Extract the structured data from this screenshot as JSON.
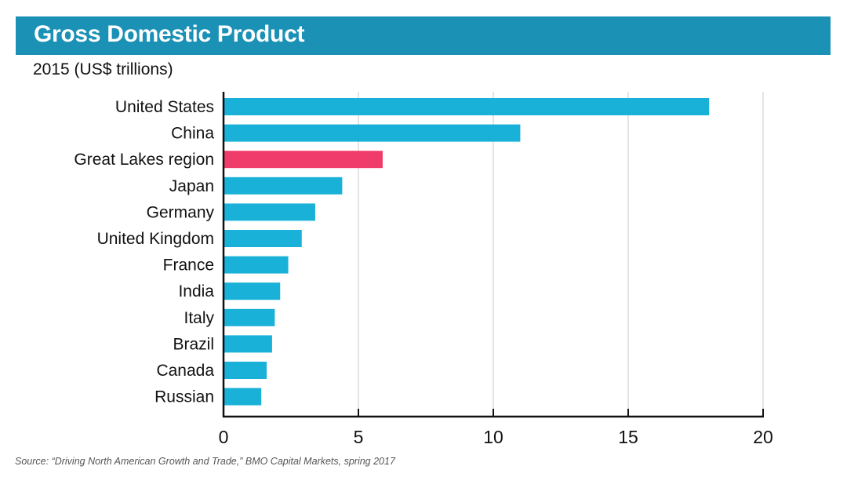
{
  "header": {
    "title": "Gross Domestic Product",
    "subtitle": "2015 (US$ trillions)"
  },
  "source": "Source: “Driving North American Growth and Trade,” BMO Capital Markets, spring 2017",
  "colors": {
    "header_bg": "#1a91b5",
    "bar_default": "#1ab1d8",
    "bar_highlight": "#f03c6a",
    "gridline": "#e4e4e4",
    "axis": "#111111"
  },
  "chart_data": {
    "type": "bar",
    "orientation": "horizontal",
    "title": "Gross Domestic Product",
    "subtitle": "2015 (US$ trillions)",
    "xlabel": "",
    "ylabel": "",
    "categories": [
      "United States",
      "China",
      "Great Lakes region",
      "Japan",
      "Germany",
      "United Kingdom",
      "France",
      "India",
      "Italy",
      "Brazil",
      "Canada",
      "Russian"
    ],
    "values": [
      18.0,
      11.0,
      5.9,
      4.4,
      3.4,
      2.9,
      2.4,
      2.1,
      1.9,
      1.8,
      1.6,
      1.4
    ],
    "highlight": [
      "Great Lakes region"
    ],
    "xlim": [
      0,
      20
    ],
    "xticks": [
      0,
      5,
      10,
      15,
      20
    ],
    "grid": "vertical",
    "legend": "none"
  }
}
